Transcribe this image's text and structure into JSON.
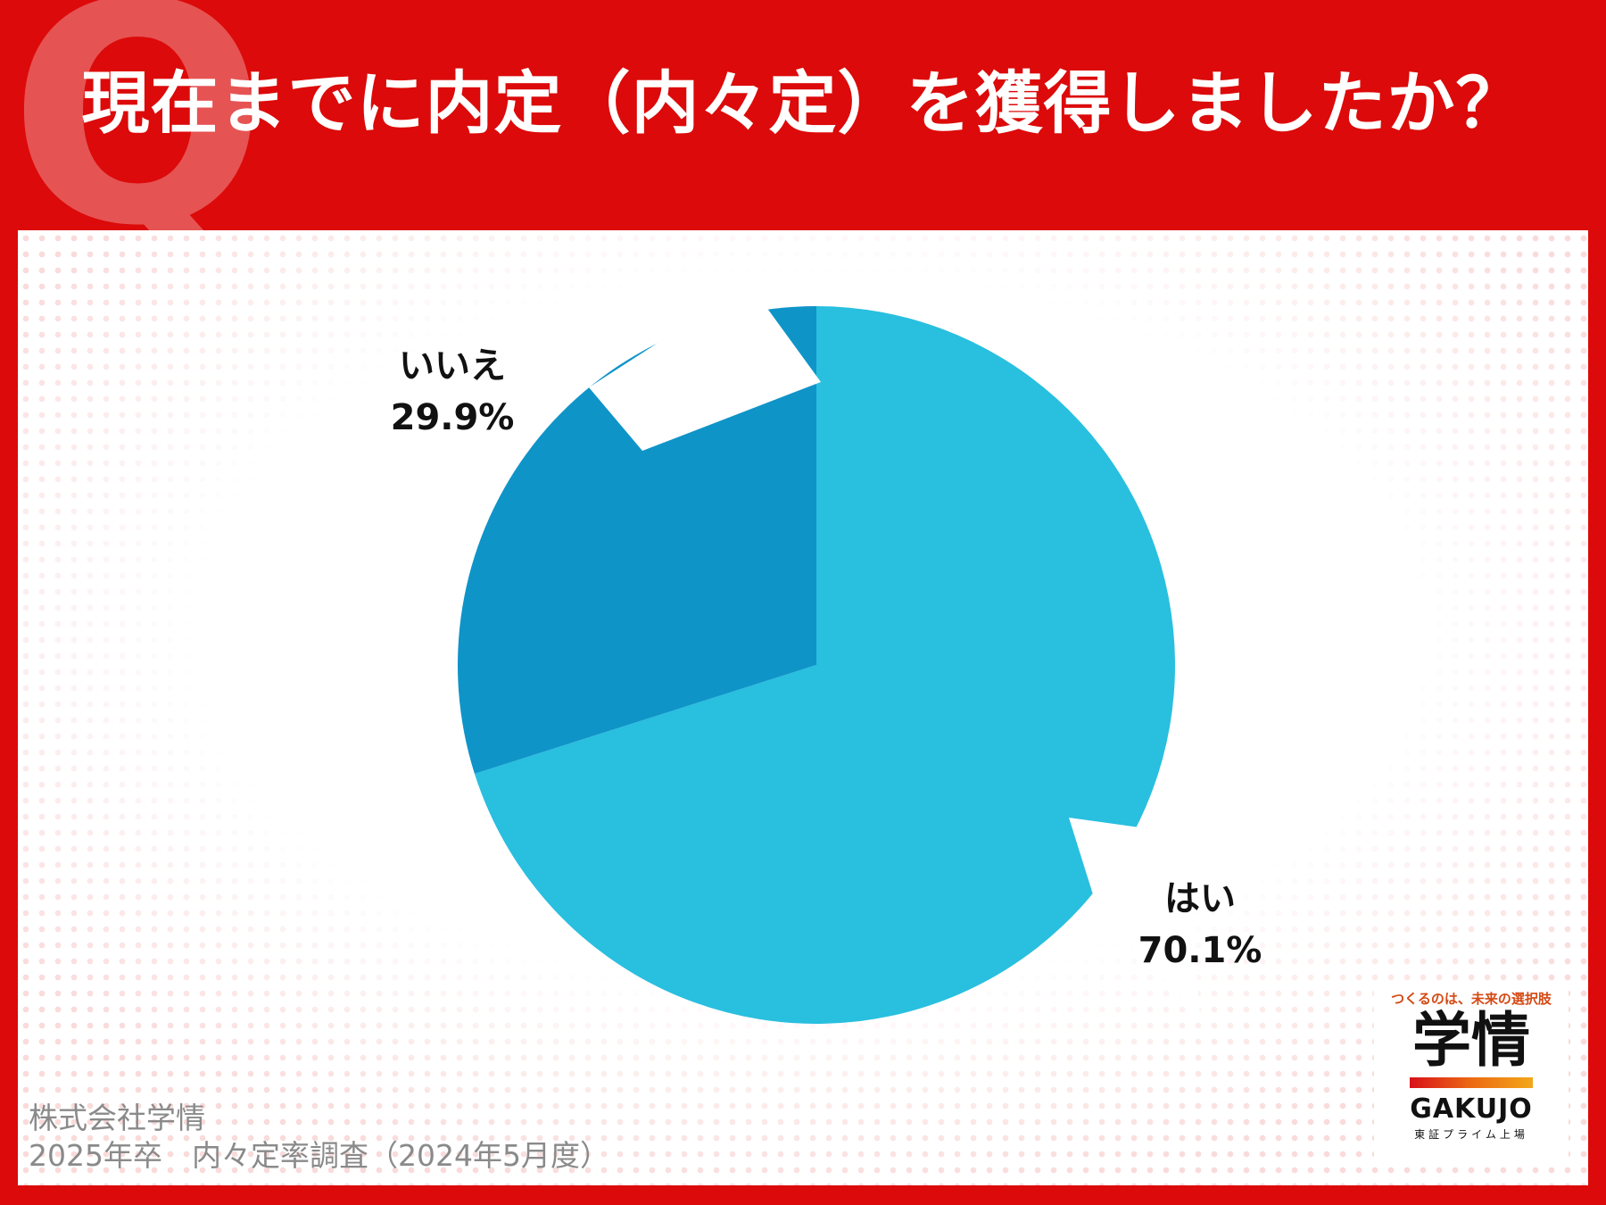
{
  "title": "現在までに内定（内々定）を獲得しましたか？",
  "chart_data": {
    "type": "pie",
    "start_angle_deg": 0,
    "direction": "clockwise",
    "slices": [
      {
        "label": "はい",
        "value": 70.1,
        "value_label": "70.1%",
        "color": "#29bfdf",
        "exploded": false
      },
      {
        "label": "いいえ",
        "value": 29.9,
        "value_label": "29.9%",
        "color": "#0f94c8",
        "exploded": false
      }
    ]
  },
  "source": {
    "line1": "株式会社学情",
    "line2": "2025年卒　内々定率調査（2024年5月度）"
  },
  "logo": {
    "tagline": "つくるのは、未来の選択肢",
    "name_ja": "学情",
    "name_en": "GAKUJO",
    "sub": "東証プライム上場"
  },
  "colors": {
    "background_red": "#dc0a0a",
    "panel": "#ffffff"
  }
}
